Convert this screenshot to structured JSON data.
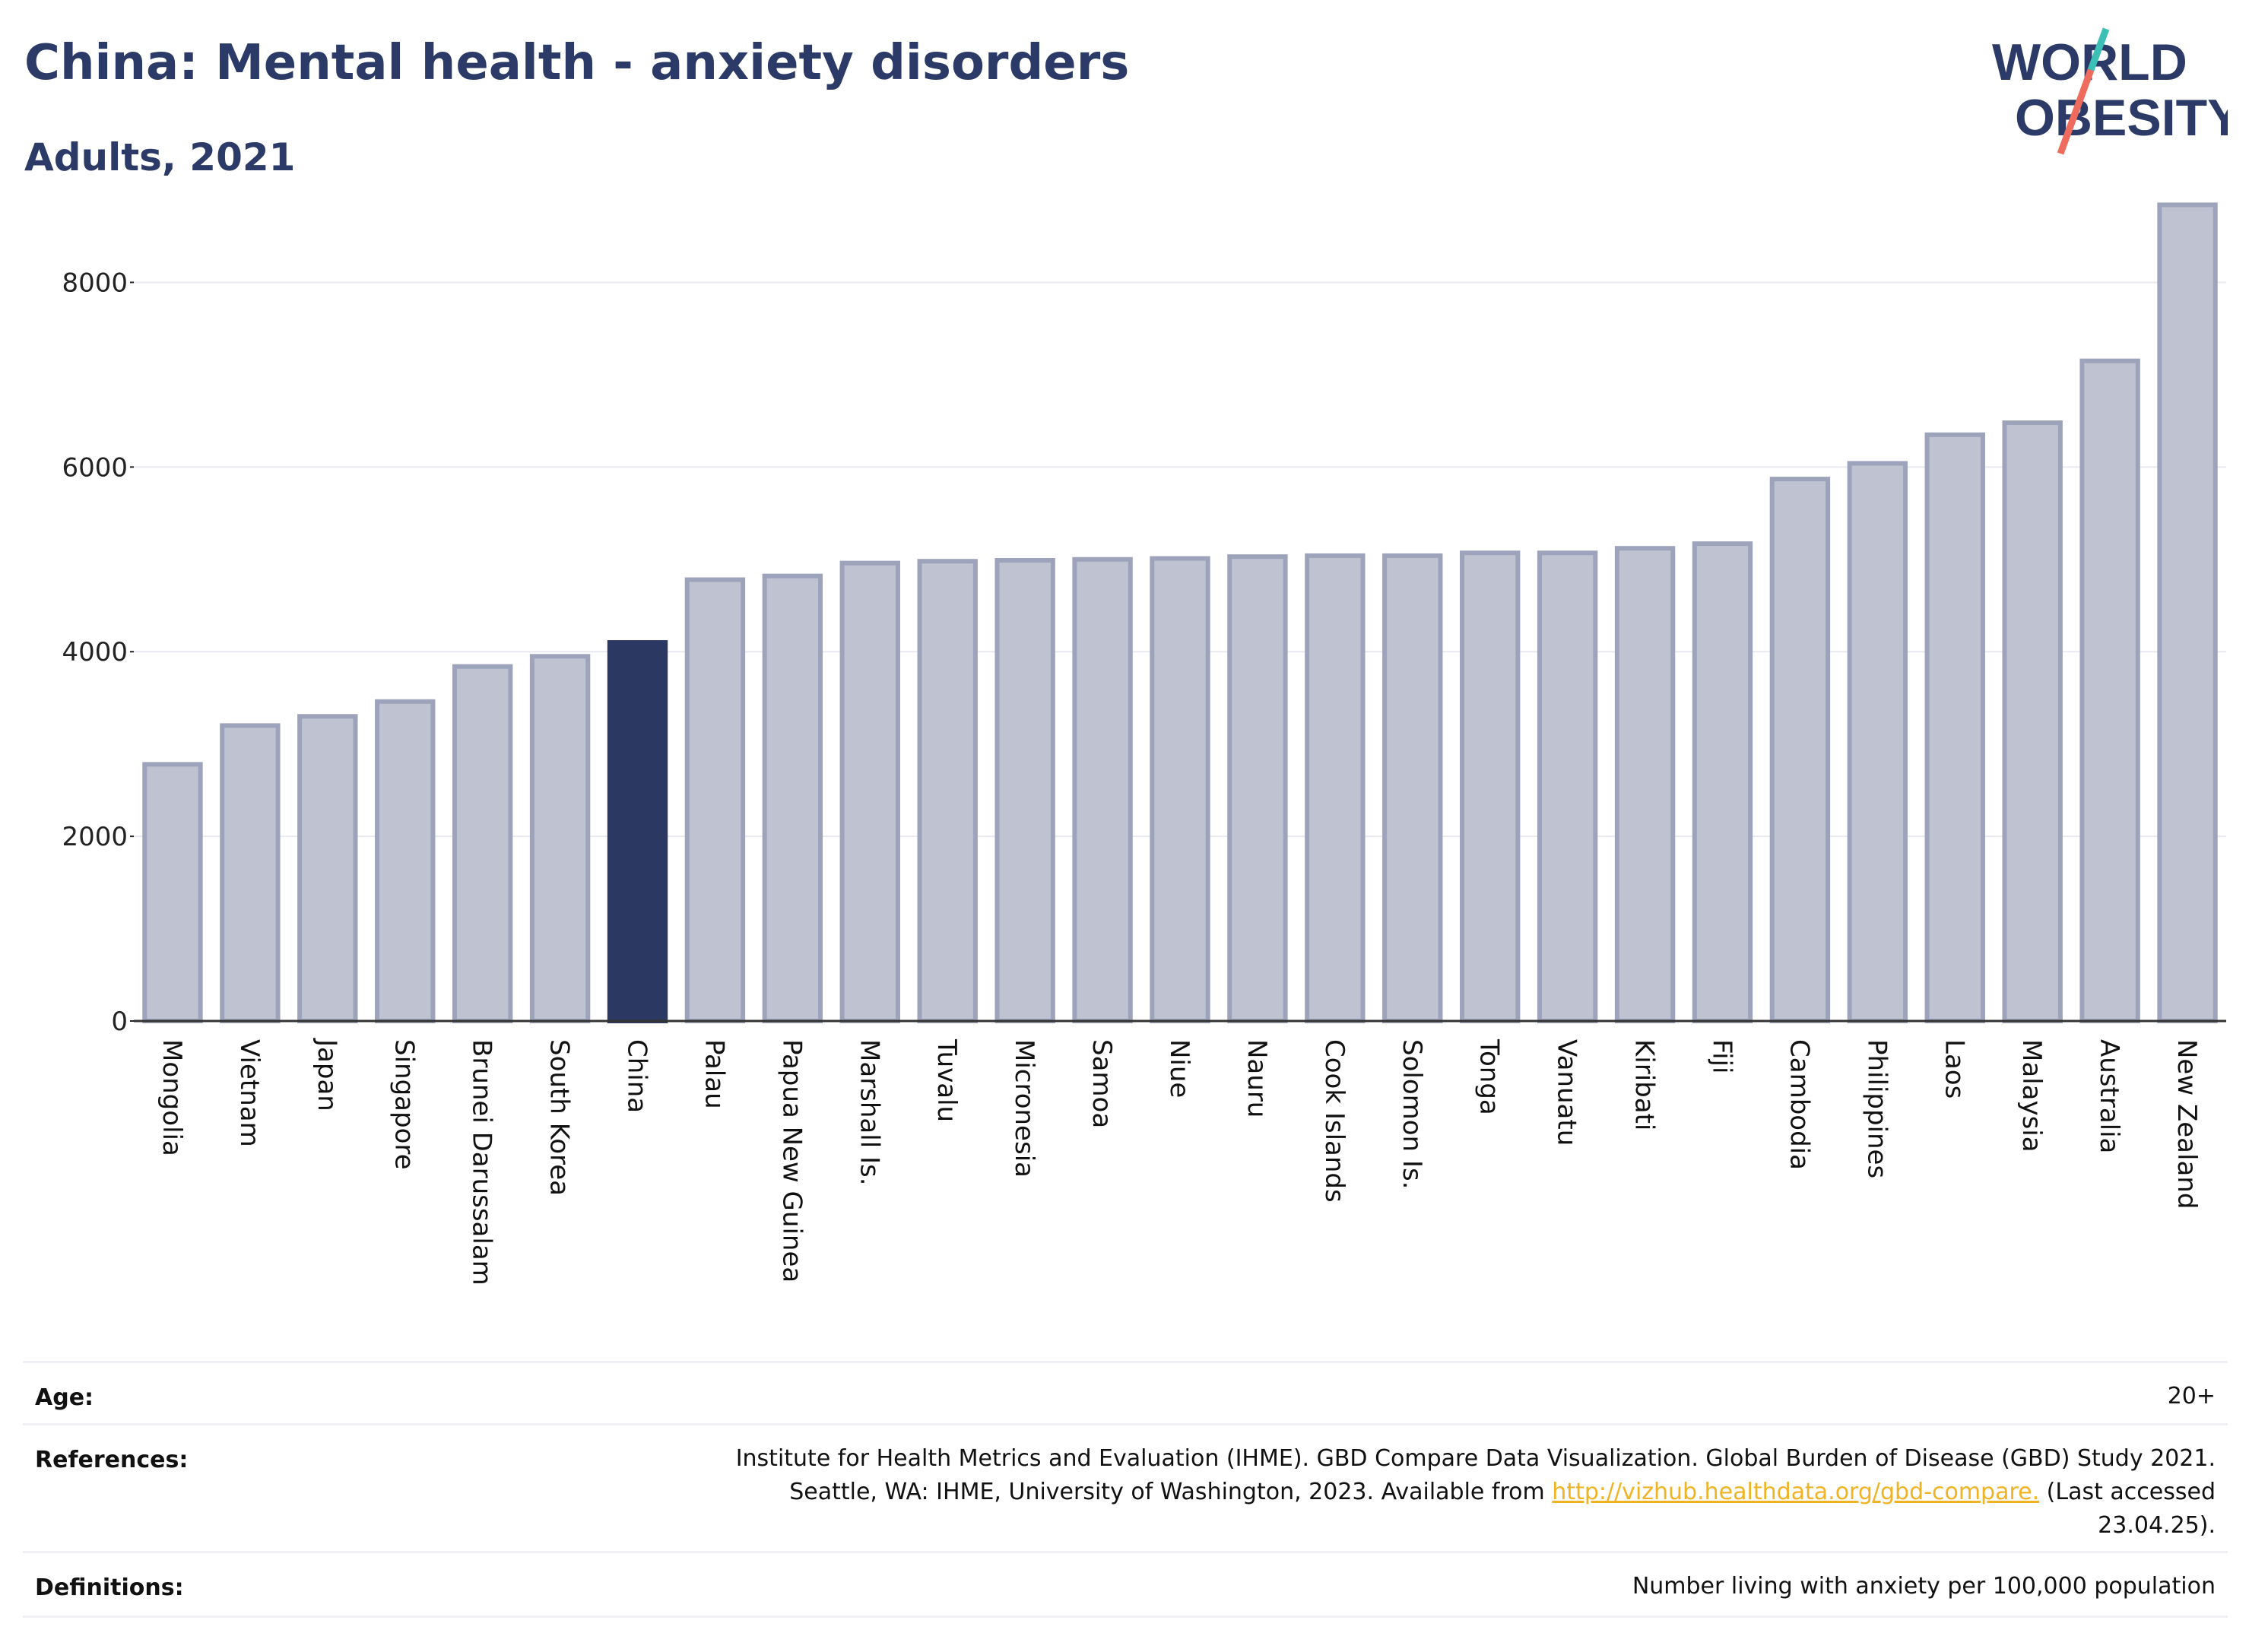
{
  "header": {
    "title": "China: Mental health - anxiety disorders",
    "subtitle": "Adults, 2021",
    "logo_line1": "WORLD",
    "logo_line2": "OBESITY"
  },
  "colors": {
    "highlight": "#2b3862",
    "bar_fill": "#bfc3d1",
    "bar_stroke": "#9da3ba",
    "grid": "#e8eaf0",
    "logo_teal": "#3cc0b6",
    "logo_coral": "#ef6b5d",
    "link": "#f0b323"
  },
  "chart_data": {
    "type": "bar",
    "categories": [
      "Mongolia",
      "Vietnam",
      "Japan",
      "Singapore",
      "Brunei Darussalam",
      "South Korea",
      "China",
      "Palau",
      "Papua New Guinea",
      "Marshall Is.",
      "Tuvalu",
      "Micronesia",
      "Samoa",
      "Niue",
      "Nauru",
      "Cook Islands",
      "Solomon Is.",
      "Tonga",
      "Vanuatu",
      "Kiribati",
      "Fiji",
      "Cambodia",
      "Philippines",
      "Laos",
      "Malaysia",
      "Australia",
      "New Zealand"
    ],
    "values": [
      2780,
      3200,
      3300,
      3460,
      3840,
      3950,
      4100,
      4780,
      4820,
      4960,
      4980,
      4990,
      5000,
      5010,
      5030,
      5040,
      5040,
      5070,
      5070,
      5120,
      5170,
      5870,
      6040,
      6350,
      6480,
      7150,
      8840
    ],
    "highlight": "China",
    "title": "China: Mental health - anxiety disorders",
    "subtitle": "Adults, 2021",
    "xlabel": "",
    "ylabel": "",
    "ylim": [
      0,
      9000
    ],
    "yticks": [
      0,
      2000,
      4000,
      6000,
      8000
    ],
    "grid": true,
    "legend": "none"
  },
  "footer": {
    "age_label": "Age:",
    "age_value": "20+",
    "references_label": "References:",
    "references_line1": "Institute for Health Metrics and Evaluation (IHME). GBD Compare Data Visualization. Global Burden of Disease (GBD) Study 2021.",
    "references_line2_pre": "Seattle, WA: IHME, University of Washington, 2023. Available from ",
    "references_link": "http://vizhub.healthdata.org/gbd-compare.",
    "references_line2_post": " (Last accessed",
    "references_line3": "23.04.25).",
    "definitions_label": "Definitions:",
    "definitions_value": "Number living with anxiety per 100,000 population"
  }
}
